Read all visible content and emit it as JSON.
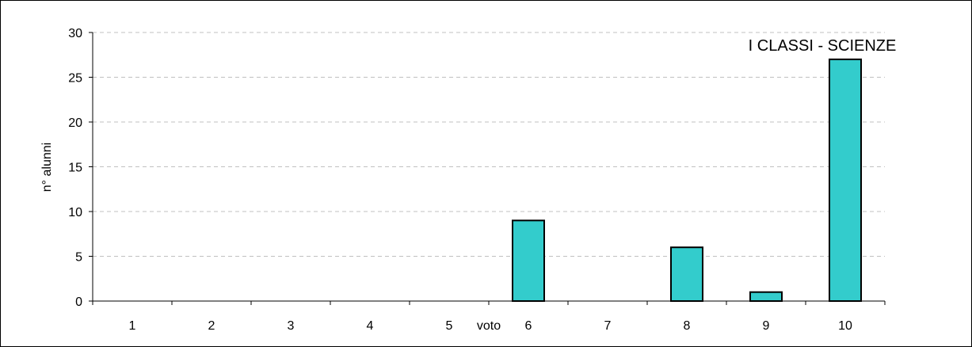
{
  "chart_data": {
    "type": "bar",
    "title": "I CLASSI - SCIENZE",
    "xlabel": "voto",
    "ylabel": "n° alunni",
    "categories": [
      "1",
      "2",
      "3",
      "4",
      "5",
      "6",
      "7",
      "8",
      "9",
      "10"
    ],
    "values": [
      0,
      0,
      0,
      0,
      0,
      9,
      0,
      6,
      1,
      27
    ],
    "ylim": [
      0,
      30
    ],
    "yticks": [
      "0",
      "5",
      "10",
      "15",
      "20",
      "25",
      "30"
    ],
    "grid": true,
    "legend": "none",
    "colors": {
      "bar": "#33CCCC",
      "bar_stroke": "#000000",
      "grid": "#C0C0C0",
      "axis": "#000000"
    }
  }
}
